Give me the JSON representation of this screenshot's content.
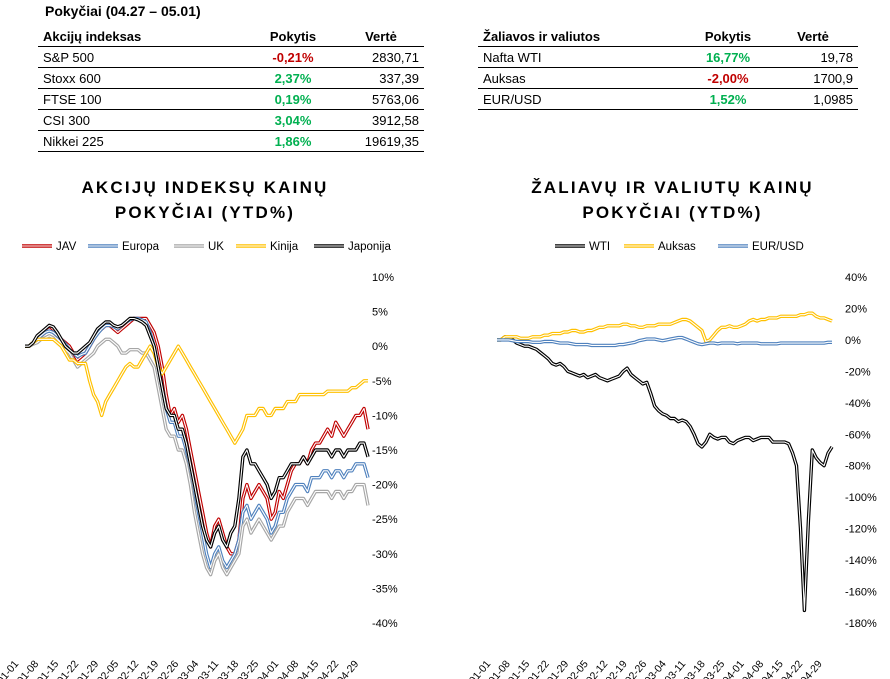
{
  "top_title": "Pokyčiai (04.27 – 05.01)",
  "table_indices": {
    "headers": [
      "Akcijų indeksas",
      "Pokytis",
      "Vertė"
    ],
    "rows": [
      {
        "name": "S&P 500",
        "change": "-0,21%",
        "value": "2830,71"
      },
      {
        "name": "Stoxx 600",
        "change": "2,37%",
        "value": "337,39"
      },
      {
        "name": "FTSE 100",
        "change": "0,19%",
        "value": "5763,06"
      },
      {
        "name": "CSI 300",
        "change": "3,04%",
        "value": "3912,58"
      },
      {
        "name": "Nikkei 225",
        "change": "1,86%",
        "value": "19619,35"
      }
    ]
  },
  "table_commod": {
    "headers": [
      "Žaliavos ir valiutos",
      "Pokytis",
      "Vertė"
    ],
    "rows": [
      {
        "name": "Nafta WTI",
        "change": "16,77%",
        "value": "19,78"
      },
      {
        "name": "Auksas",
        "change": "-2,00%",
        "value": "1700,9"
      },
      {
        "name": "EUR/USD",
        "change": "1,52%",
        "value": "1,0985"
      }
    ]
  },
  "colors": {
    "positive": "#00b050",
    "negative": "#c00000"
  },
  "chart_data": [
    {
      "type": "line",
      "title_line1": "AKCIJŲ INDEKSŲ KAINŲ",
      "title_line2": "POKYČIAI (YTD%)",
      "x_tick_labels": [
        "01-01",
        "01-08",
        "01-15",
        "01-22",
        "01-29",
        "02-05",
        "02-12",
        "02-19",
        "02-26",
        "03-04",
        "03-11",
        "03-18",
        "03-25",
        "04-01",
        "04-08",
        "04-15",
        "04-22",
        "04-29"
      ],
      "y_ticks": [
        10,
        5,
        0,
        -5,
        -10,
        -15,
        -20,
        -25,
        -30,
        -35,
        -40
      ],
      "y_tick_labels": [
        "10%",
        "5%",
        "0%",
        "-5%",
        "-10%",
        "-15%",
        "-20%",
        "-25%",
        "-30%",
        "-35%",
        "-40%"
      ],
      "ylim": [
        -40,
        10
      ],
      "x_points": 86,
      "legend_position": "top",
      "series": [
        {
          "name": "JAV",
          "color": "#c00000",
          "values": [
            0,
            0,
            0.5,
            1,
            1.5,
            2,
            2.5,
            2,
            1.5,
            1,
            0.5,
            0,
            -1,
            -2,
            -1.5,
            -1,
            0,
            1,
            2,
            2.5,
            3,
            3,
            2.5,
            2,
            2.5,
            3,
            3.5,
            4,
            4,
            4,
            4,
            3,
            2,
            0,
            -3,
            -7,
            -10,
            -9,
            -11,
            -10,
            -12,
            -15,
            -18,
            -21,
            -24,
            -27,
            -29,
            -26,
            -25,
            -27,
            -29,
            -30,
            -30,
            -28,
            -22,
            -20,
            -22,
            -21,
            -20,
            -21,
            -22,
            -25,
            -24,
            -21,
            -22,
            -20,
            -18,
            -17,
            -17,
            -16,
            -17,
            -15,
            -14,
            -14,
            -13,
            -12,
            -13,
            -11,
            -12,
            -13,
            -12,
            -11,
            -10,
            -10,
            -9,
            -12
          ]
        },
        {
          "name": "Europa",
          "color": "#4f81bd",
          "values": [
            0,
            0,
            0.5,
            1,
            1.5,
            2,
            2.2,
            2,
            1.5,
            1,
            0.3,
            -0.5,
            -1,
            -1.5,
            -1.2,
            -1,
            0,
            1,
            1.8,
            2.5,
            3,
            3,
            2.8,
            2.5,
            3,
            3.5,
            3.8,
            4,
            4,
            3.8,
            3.5,
            2,
            0,
            -3,
            -6,
            -9,
            -11,
            -11,
            -13,
            -13,
            -15,
            -18,
            -21,
            -24,
            -27,
            -30,
            -32,
            -30,
            -29,
            -31,
            -32,
            -31,
            -30,
            -28,
            -24,
            -23,
            -25,
            -24,
            -23,
            -24,
            -25,
            -27,
            -26,
            -24,
            -24,
            -22,
            -21,
            -20,
            -20,
            -20,
            -21,
            -19,
            -19,
            -19,
            -18,
            -18,
            -19,
            -18,
            -18,
            -19,
            -18,
            -18,
            -17,
            -17,
            -17,
            -19
          ]
        },
        {
          "name": "UK",
          "color": "#a6a6a6",
          "values": [
            0,
            0,
            0.3,
            0.5,
            1,
            1.2,
            1.5,
            1.2,
            0.5,
            0,
            -0.5,
            -1,
            -2,
            -3,
            -2.5,
            -2,
            -1.5,
            -1,
            0,
            0.5,
            1,
            1,
            0.5,
            0,
            -1,
            -1,
            -0.5,
            -0.5,
            -0.5,
            -1,
            -1,
            -2,
            -3,
            -6,
            -9,
            -12,
            -13,
            -13,
            -15,
            -15,
            -17,
            -20,
            -24,
            -27,
            -30,
            -32,
            -33,
            -31,
            -30,
            -32,
            -33,
            -32,
            -31,
            -30,
            -26,
            -25,
            -27,
            -26,
            -25,
            -26,
            -27,
            -28,
            -27,
            -26,
            -26,
            -24,
            -23,
            -22,
            -22,
            -22,
            -23,
            -22,
            -21,
            -21,
            -21,
            -21,
            -22,
            -21,
            -21,
            -22,
            -21,
            -21,
            -20,
            -20,
            -20,
            -23
          ]
        },
        {
          "name": "Kinija",
          "color": "#ffc000",
          "values": [
            0,
            0,
            0.5,
            1,
            1,
            1,
            1,
            1,
            0.5,
            0,
            -1,
            -2,
            -2,
            -2.5,
            -2.5,
            -2.5,
            -5,
            -7,
            -8,
            -10,
            -8,
            -7,
            -6,
            -5,
            -4,
            -3,
            -2.5,
            -3,
            -3,
            -2,
            -1,
            0,
            -1,
            -3,
            -4,
            -3,
            -2,
            -1,
            0,
            -1,
            -2,
            -3,
            -4,
            -5,
            -6,
            -7,
            -8,
            -9,
            -10,
            -11,
            -12,
            -13,
            -14,
            -13,
            -12,
            -10,
            -10,
            -10,
            -9,
            -9,
            -10,
            -10,
            -9,
            -9,
            -9,
            -8,
            -8,
            -8,
            -7,
            -7,
            -7,
            -7,
            -7,
            -7,
            -7,
            -6.5,
            -6.5,
            -6.5,
            -6.5,
            -6.5,
            -6.5,
            -6,
            -6,
            -5.5,
            -5,
            -5
          ]
        },
        {
          "name": "Japonija",
          "color": "#000000",
          "values": [
            0,
            0,
            0.5,
            1.5,
            2,
            2.5,
            3,
            2.8,
            2,
            1,
            0,
            -0.5,
            -1,
            -1,
            -0.5,
            0,
            0.5,
            1.5,
            2.5,
            3,
            3.5,
            3.5,
            3,
            2.8,
            3,
            3.5,
            4,
            4,
            3.8,
            3.5,
            3,
            1.5,
            0,
            -3,
            -6,
            -9,
            -10,
            -10,
            -12,
            -12,
            -14,
            -17,
            -20,
            -23,
            -26,
            -28,
            -29,
            -27,
            -26,
            -28,
            -29,
            -27,
            -26,
            -22,
            -16,
            -15,
            -17,
            -17,
            -18,
            -19,
            -20,
            -22,
            -21,
            -19,
            -19,
            -18,
            -17,
            -17,
            -17,
            -16,
            -17,
            -16,
            -15,
            -15,
            -15,
            -15,
            -16,
            -15,
            -15,
            -16,
            -15,
            -15,
            -15,
            -14,
            -14,
            -16
          ]
        }
      ]
    },
    {
      "type": "line",
      "title_line1": "ŽALIAVŲ IR VALIUTŲ KAINŲ",
      "title_line2": "POKYČIAI (YTD%)",
      "x_tick_labels": [
        "01-01",
        "01-08",
        "01-15",
        "01-22",
        "01-29",
        "02-05",
        "02-12",
        "02-19",
        "02-26",
        "03-04",
        "03-11",
        "03-18",
        "03-25",
        "04-01",
        "04-08",
        "04-15",
        "04-22",
        "04-29"
      ],
      "y_ticks": [
        40,
        20,
        0,
        -20,
        -40,
        -60,
        -80,
        -100,
        -120,
        -140,
        -160,
        -180
      ],
      "y_tick_labels": [
        "40%",
        "20%",
        "0%",
        "-20%",
        "-40%",
        "-60%",
        "-80%",
        "-100%",
        "-120%",
        "-140%",
        "-160%",
        "-180%"
      ],
      "ylim": [
        -180,
        40
      ],
      "x_points": 86,
      "legend_position": "top",
      "series": [
        {
          "name": "WTI",
          "color": "#000000",
          "values": [
            0,
            0,
            2,
            1,
            0,
            -2,
            -3,
            -4,
            -4,
            -5,
            -6,
            -8,
            -10,
            -12,
            -15,
            -16,
            -15,
            -17,
            -20,
            -21,
            -22,
            -23,
            -22,
            -24,
            -23,
            -22,
            -24,
            -25,
            -26,
            -25,
            -24,
            -23,
            -20,
            -18,
            -22,
            -24,
            -26,
            -28,
            -27,
            -34,
            -42,
            -45,
            -47,
            -48,
            -50,
            -50,
            -52,
            -51,
            -52,
            -55,
            -60,
            -66,
            -68,
            -65,
            -60,
            -62,
            -63,
            -62,
            -62,
            -65,
            -66,
            -64,
            -63,
            -62,
            -62,
            -64,
            -63,
            -62,
            -62,
            -62,
            -65,
            -65,
            -65,
            -65,
            -66,
            -72,
            -80,
            -120,
            -172,
            -115,
            -70,
            -75,
            -78,
            -80,
            -72,
            -68
          ]
        },
        {
          "name": "Auksas",
          "color": "#ffc000",
          "values": [
            0,
            0,
            2,
            2,
            2,
            2,
            1,
            1,
            1,
            2,
            2,
            2,
            3,
            3,
            4,
            4,
            4,
            5,
            5,
            6,
            6,
            5,
            5,
            6,
            6,
            7,
            8,
            8,
            9,
            9,
            9,
            9,
            10,
            10,
            9,
            9,
            8,
            8,
            9,
            9,
            9,
            10,
            10,
            10,
            10,
            11,
            12,
            13,
            13,
            12,
            10,
            8,
            6,
            -1,
            0,
            3,
            6,
            8,
            8,
            9,
            8,
            8,
            9,
            10,
            12,
            13,
            12,
            13,
            13,
            14,
            14,
            14,
            15,
            15,
            15,
            15,
            15,
            16,
            16,
            17,
            17,
            15,
            14,
            14,
            13,
            12
          ]
        },
        {
          "name": "EUR/USD",
          "color": "#4f81bd",
          "values": [
            0,
            0,
            0,
            0,
            -0.5,
            -1,
            -1,
            -1,
            -1,
            -1.5,
            -1.5,
            -1.5,
            -1,
            -1,
            -1,
            -1.5,
            -2,
            -2,
            -2,
            -2.5,
            -3,
            -3,
            -3,
            -3,
            -3.5,
            -3.5,
            -3.5,
            -3.5,
            -3.5,
            -3.5,
            -3.5,
            -3,
            -3,
            -2.5,
            -2,
            -1.5,
            -0.5,
            0,
            0.5,
            0.5,
            0.5,
            0,
            -0.5,
            0,
            0.5,
            1,
            1.5,
            1.5,
            0.5,
            -0.5,
            -1.5,
            -2.5,
            -3,
            -2.5,
            -2,
            -2,
            -2.5,
            -2,
            -2,
            -2,
            -2,
            -2.5,
            -2,
            -2,
            -2,
            -2,
            -2,
            -2.5,
            -2.5,
            -2.5,
            -2.5,
            -2.5,
            -2,
            -2,
            -2,
            -2,
            -2,
            -2,
            -2,
            -2,
            -2,
            -2,
            -2,
            -2,
            -1.5,
            -1.5
          ]
        }
      ]
    }
  ]
}
